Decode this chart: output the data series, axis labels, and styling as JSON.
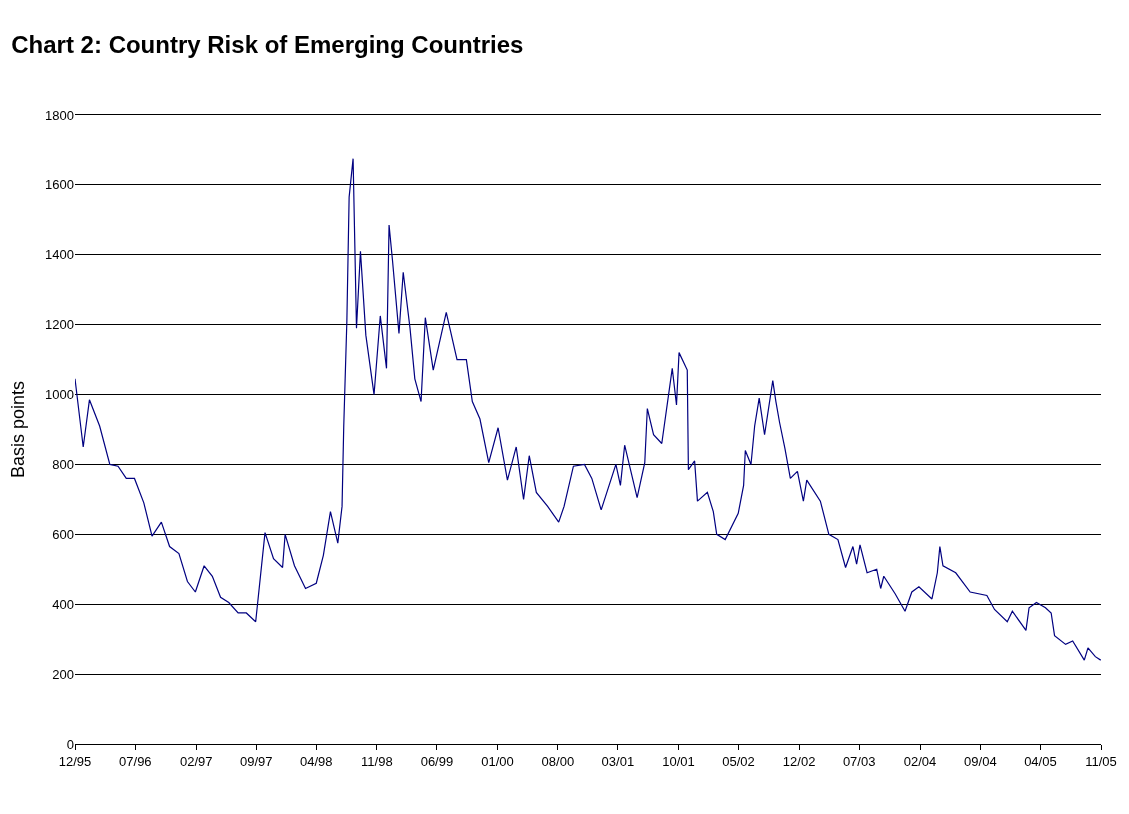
{
  "chart_data": {
    "type": "line",
    "title": "Chart 2: Country Risk of Emerging Countries",
    "ylabel": "Basis points",
    "x": [
      "1995-12-01",
      "1995-12-30",
      "1996-01-21",
      "1996-02-26",
      "1996-04-02",
      "1996-05-01",
      "1996-05-30",
      "1996-06-28",
      "1996-07-31",
      "1996-08-29",
      "1996-10-01",
      "1996-10-30",
      "1996-12-02",
      "1997-01-01",
      "1997-01-29",
      "1997-03-01",
      "1997-03-30",
      "1997-04-28",
      "1997-05-27",
      "1997-06-29",
      "1997-07-28",
      "1997-08-30",
      "1997-10-02",
      "1997-11-01",
      "1997-12-03",
      "1997-12-12",
      "1998-01-14",
      "1998-02-22",
      "1998-04-01",
      "1998-04-26",
      "1998-05-21",
      "1998-06-16",
      "1998-07-01",
      "1998-07-07",
      "1998-07-18",
      "1998-07-26",
      "1998-08-09",
      "1998-08-21",
      "1998-09-04",
      "1998-09-23",
      "1998-10-22",
      "1998-11-13",
      "1998-12-05",
      "1998-12-14",
      "1998-12-26",
      "1999-01-18",
      "1999-02-02",
      "1999-02-26",
      "1999-03-15",
      "1999-04-06",
      "1999-04-21",
      "1999-05-19",
      "1999-07-04",
      "1999-08-11",
      "1999-09-13",
      "1999-10-04",
      "1999-10-31",
      "1999-12-01",
      "2000-01-03",
      "2000-02-05",
      "2000-03-07",
      "2000-04-02",
      "2000-04-22",
      "2000-05-17",
      "2000-06-26",
      "2000-08-04",
      "2000-08-23",
      "2000-09-25",
      "2000-11-03",
      "2000-11-29",
      "2001-01-01",
      "2001-02-22",
      "2001-03-10",
      "2001-03-25",
      "2001-05-08",
      "2001-06-04",
      "2001-06-13",
      "2001-07-05",
      "2001-08-03",
      "2001-09-09",
      "2001-09-24",
      "2001-10-03",
      "2001-11-01",
      "2001-11-05",
      "2001-11-27",
      "2001-12-07",
      "2002-01-11",
      "2002-02-01",
      "2002-02-13",
      "2002-03-15",
      "2002-04-30",
      "2002-05-19",
      "2002-05-25",
      "2002-06-14",
      "2002-06-27",
      "2002-07-13",
      "2002-08-01",
      "2002-08-30",
      "2002-09-10",
      "2002-09-23",
      "2002-10-12",
      "2002-10-31",
      "2002-11-25",
      "2002-12-16",
      "2002-12-28",
      "2003-02-14",
      "2003-03-16",
      "2003-04-17",
      "2003-05-14",
      "2003-06-09",
      "2003-06-22",
      "2003-07-04",
      "2003-07-29",
      "2003-09-01",
      "2003-09-15",
      "2003-09-26",
      "2003-11-05",
      "2003-12-10",
      "2004-01-03",
      "2004-01-28",
      "2004-03-14",
      "2004-04-02",
      "2004-04-11",
      "2004-04-22",
      "2004-06-06",
      "2004-07-27",
      "2004-09-24",
      "2004-10-21",
      "2004-12-05",
      "2004-12-23",
      "2005-02-09",
      "2005-02-20",
      "2005-03-18",
      "2005-04-19",
      "2005-05-09",
      "2005-05-21",
      "2005-06-29",
      "2005-07-24",
      "2005-09-03",
      "2005-09-16",
      "2005-10-12",
      "2005-10-31"
    ],
    "series": [
      {
        "color": "#000080",
        "values": [
          1045,
          850,
          985,
          910,
          800,
          795,
          760,
          760,
          690,
          595,
          635,
          565,
          545,
          465,
          435,
          510,
          480,
          420,
          405,
          375,
          375,
          350,
          605,
          530,
          505,
          600,
          510,
          445,
          460,
          540,
          665,
          575,
          680,
          910,
          1210,
          1565,
          1675,
          1190,
          1410,
          1170,
          1000,
          1225,
          1075,
          1485,
          1385,
          1175,
          1350,
          1190,
          1045,
          980,
          1220,
          1070,
          1235,
          1100,
          1100,
          980,
          930,
          805,
          905,
          755,
          850,
          700,
          825,
          720,
          680,
          635,
          680,
          795,
          800,
          760,
          670,
          800,
          740,
          855,
          705,
          805,
          960,
          885,
          860,
          1075,
          970,
          1120,
          1070,
          785,
          810,
          695,
          720,
          665,
          600,
          585,
          660,
          740,
          840,
          800,
          910,
          990,
          885,
          1040,
          980,
          920,
          845,
          760,
          780,
          695,
          755,
          695,
          600,
          585,
          505,
          565,
          515,
          570,
          490,
          500,
          445,
          480,
          430,
          380,
          435,
          450,
          415,
          490,
          565,
          510,
          490,
          435,
          425,
          385,
          350,
          380,
          325,
          390,
          405,
          390,
          375,
          310,
          285,
          295,
          240,
          275,
          250,
          240
        ]
      }
    ],
    "xlim": [
      "1995-12-01",
      "2005-11-01"
    ],
    "xticks": [
      {
        "value": "1995-12-01",
        "label": "12/95"
      },
      {
        "value": "1996-07-01",
        "label": "07/96"
      },
      {
        "value": "1997-02-01",
        "label": "02/97"
      },
      {
        "value": "1997-09-01",
        "label": "09/97"
      },
      {
        "value": "1998-04-01",
        "label": "04/98"
      },
      {
        "value": "1998-11-01",
        "label": "11/98"
      },
      {
        "value": "1999-06-01",
        "label": "06/99"
      },
      {
        "value": "2000-01-01",
        "label": "01/00"
      },
      {
        "value": "2000-08-01",
        "label": "08/00"
      },
      {
        "value": "2001-03-01",
        "label": "03/01"
      },
      {
        "value": "2001-10-01",
        "label": "10/01"
      },
      {
        "value": "2002-05-01",
        "label": "05/02"
      },
      {
        "value": "2002-12-01",
        "label": "12/02"
      },
      {
        "value": "2003-07-01",
        "label": "07/03"
      },
      {
        "value": "2004-02-01",
        "label": "02/04"
      },
      {
        "value": "2004-09-01",
        "label": "09/04"
      },
      {
        "value": "2005-04-01",
        "label": "04/05"
      },
      {
        "value": "2005-11-01",
        "label": "11/05"
      }
    ],
    "ylim": [
      0,
      1800
    ],
    "yticks": [
      0,
      200,
      400,
      600,
      800,
      1000,
      1200,
      1400,
      1600,
      1800
    ],
    "grid": "y",
    "marker": "none",
    "line_style": "solid"
  }
}
